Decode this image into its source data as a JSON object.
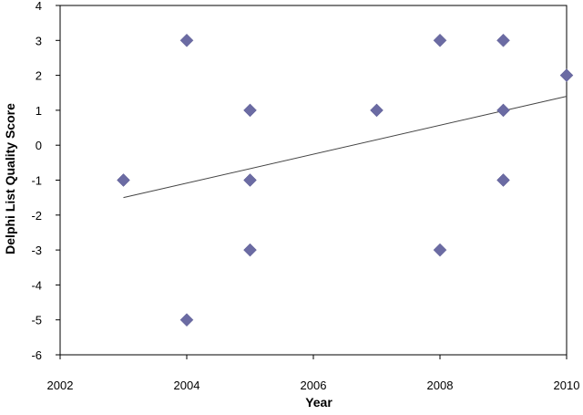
{
  "chart_data": {
    "type": "scatter",
    "title": "",
    "xlabel": "Year",
    "ylabel": "Delphi List Quality Score",
    "xlim": [
      2002,
      2010
    ],
    "ylim": [
      -6,
      4
    ],
    "x_ticks": [
      "2002",
      "2004",
      "2006",
      "2008",
      "2010"
    ],
    "y_ticks": [
      "4",
      "3",
      "2",
      "1",
      "0",
      "-1",
      "-2",
      "-3",
      "-4",
      "-5",
      "-6"
    ],
    "grid": false,
    "legend": "none",
    "marker": "diamond",
    "marker_color": "#6b6ba3",
    "trendline_color": "#444444",
    "points": [
      {
        "x": 2003,
        "y": -1
      },
      {
        "x": 2004,
        "y": 3
      },
      {
        "x": 2004,
        "y": -5
      },
      {
        "x": 2005,
        "y": 1
      },
      {
        "x": 2005,
        "y": -1
      },
      {
        "x": 2005,
        "y": -3
      },
      {
        "x": 2007,
        "y": 1
      },
      {
        "x": 2008,
        "y": 3
      },
      {
        "x": 2008,
        "y": -3
      },
      {
        "x": 2009,
        "y": 3
      },
      {
        "x": 2009,
        "y": 1
      },
      {
        "x": 2009,
        "y": -1
      },
      {
        "x": 2010,
        "y": 2
      }
    ],
    "trendline": {
      "x": [
        2003,
        2010
      ],
      "y": [
        -1.5,
        1.4
      ]
    }
  }
}
